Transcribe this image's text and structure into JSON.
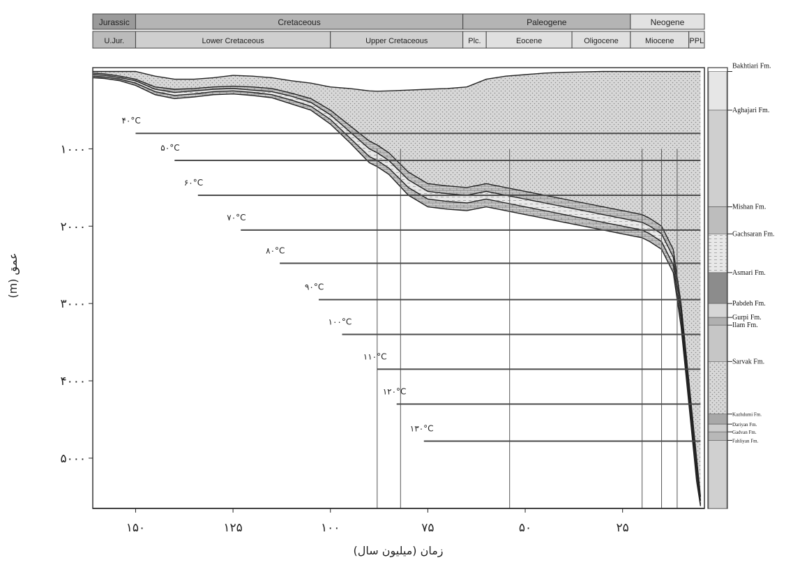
{
  "chart_data": {
    "type": "area",
    "title": "",
    "xlabel": "زمان (میلیون سال)",
    "ylabel": "عمق (m)",
    "x_ticks": [
      {
        "value": 150,
        "label": "۱۵۰"
      },
      {
        "value": 125,
        "label": "۱۲۵"
      },
      {
        "value": 100,
        "label": "۱۰۰"
      },
      {
        "value": 75,
        "label": "۷۵"
      },
      {
        "value": 50,
        "label": "۵۰"
      },
      {
        "value": 25,
        "label": "۲۵"
      }
    ],
    "y_ticks": [
      {
        "value": 1000,
        "label": "۱۰۰۰"
      },
      {
        "value": 2000,
        "label": "۲۰۰۰"
      },
      {
        "value": 3000,
        "label": "۳۰۰۰"
      },
      {
        "value": 4000,
        "label": "۴۰۰۰"
      },
      {
        "value": 5000,
        "label": "۵۰۰۰"
      }
    ],
    "xlim": [
      161,
      4
    ],
    "ylim": [
      -50,
      5650
    ],
    "periods": [
      {
        "name": "Jurassic",
        "start": 161,
        "end": 150
      },
      {
        "name": "Cretaceous",
        "start": 150,
        "end": 66
      },
      {
        "name": "Paleogene",
        "start": 66,
        "end": 23
      },
      {
        "name": "Neogene",
        "start": 23,
        "end": 4
      }
    ],
    "epochs": [
      {
        "name": "U.Jur.",
        "start": 161,
        "end": 150
      },
      {
        "name": "Lower Cretaceous",
        "start": 150,
        "end": 100
      },
      {
        "name": "Upper Cretaceous",
        "start": 100,
        "end": 66
      },
      {
        "name": "Plc.",
        "start": 66,
        "end": 60
      },
      {
        "name": "Eocene",
        "start": 60,
        "end": 38
      },
      {
        "name": "Oligocene",
        "start": 38,
        "end": 23
      },
      {
        "name": "Miocene",
        "start": 23,
        "end": 8
      },
      {
        "name": "PPL",
        "start": 8,
        "end": 4
      }
    ],
    "isotherms": [
      {
        "label": "۴۰°C",
        "depth": 800,
        "from": 150
      },
      {
        "label": "۵۰°C",
        "depth": 1150,
        "from": 140
      },
      {
        "label": "۶۰°C",
        "depth": 1600,
        "from": 134
      },
      {
        "label": "۷۰°C",
        "depth": 2050,
        "from": 123
      },
      {
        "label": "۸۰°C",
        "depth": 2480,
        "from": 113
      },
      {
        "label": "۹۰°C",
        "depth": 2950,
        "from": 103
      },
      {
        "label": "۱۰۰°C",
        "depth": 3400,
        "from": 97
      },
      {
        "label": "۱۱۰°C",
        "depth": 3850,
        "from": 88
      },
      {
        "label": "۱۲۰°C",
        "depth": 4300,
        "from": 83
      },
      {
        "label": "۱۳۰°C",
        "depth": 4780,
        "from": 76
      }
    ],
    "formations": [
      {
        "name": "Bakhtiari Fm.",
        "depth": 0
      },
      {
        "name": "Aghajari Fm.",
        "depth": 500
      },
      {
        "name": "Mishan Fm.",
        "depth": 1750
      },
      {
        "name": "Gachsaran Fm.",
        "depth": 2100
      },
      {
        "name": "Asmari Fm.",
        "depth": 2600
      },
      {
        "name": "Pabdeh Fm.",
        "depth": 3000
      },
      {
        "name": "Gurpi Fm.",
        "depth": 3180
      },
      {
        "name": "Ilam Fm.",
        "depth": 3280
      },
      {
        "name": "Sarvak Fm.",
        "depth": 3750
      },
      {
        "name": "Kazhdumi Fm.",
        "depth": 4430
      },
      {
        "name": "Dariyan Fm.",
        "depth": 4560
      },
      {
        "name": "Gadvan Fm.",
        "depth": 4660
      },
      {
        "name": "Fahliyan Fm.",
        "depth": 4770
      }
    ],
    "burial_horizons": [
      {
        "x": [
          161,
          158,
          154,
          150,
          145,
          140,
          135,
          130,
          125,
          120,
          115,
          110,
          105,
          100,
          95,
          90,
          88,
          85,
          80,
          75,
          70,
          65,
          60,
          55,
          50,
          45,
          40,
          35,
          30,
          25,
          20,
          18,
          15,
          12,
          10,
          8,
          6,
          5
        ],
        "series": [
          {
            "depth": [
              0,
              0,
              0,
              0,
              60,
              100,
              100,
              80,
              50,
              60,
              80,
              120,
              150,
              200,
              220,
              250,
              255,
              250,
              240,
              230,
              220,
              200,
              100,
              60,
              40,
              20,
              10,
              5,
              0,
              0,
              0,
              0,
              0,
              0,
              0,
              0,
              0,
              0
            ]
          },
          {
            "depth": [
              20,
              30,
              60,
              100,
              200,
              230,
              220,
              200,
              190,
              200,
              220,
              280,
              350,
              500,
              700,
              900,
              950,
              1050,
              1300,
              1450,
              1480,
              1500,
              1450,
              1500,
              1550,
              1600,
              1650,
              1700,
              1750,
              1800,
              1850,
              1900,
              2000,
              2300,
              3000,
              4000,
              5000,
              5500
            ]
          },
          {
            "depth": [
              40,
              50,
              80,
              120,
              230,
              270,
              250,
              230,
              220,
              240,
              260,
              320,
              400,
              560,
              780,
              1000,
              1050,
              1150,
              1400,
              1550,
              1580,
              1600,
              1550,
              1600,
              1650,
              1700,
              1750,
              1800,
              1850,
              1900,
              1950,
              2000,
              2100,
              2400,
              3100,
              4100,
              5100,
              5550
            ]
          },
          {
            "depth": [
              60,
              70,
              100,
              150,
              260,
              310,
              290,
              260,
              250,
              270,
              300,
              370,
              450,
              620,
              860,
              1100,
              1150,
              1250,
              1500,
              1650,
              1680,
              1700,
              1650,
              1700,
              1750,
              1800,
              1850,
              1900,
              1950,
              2000,
              2050,
              2100,
              2200,
              2500,
              3200,
              4200,
              5200,
              5600
            ]
          },
          {
            "depth": [
              80,
              90,
              120,
              180,
              300,
              350,
              330,
              300,
              290,
              310,
              340,
              420,
              500,
              680,
              920,
              1180,
              1230,
              1330,
              1600,
              1750,
              1780,
              1800,
              1750,
              1800,
              1850,
              1900,
              1950,
              2000,
              2050,
              2100,
              2150,
              2200,
              2300,
              2600,
              3300,
              4300,
              5300,
              5620
            ]
          }
        ]
      }
    ]
  }
}
